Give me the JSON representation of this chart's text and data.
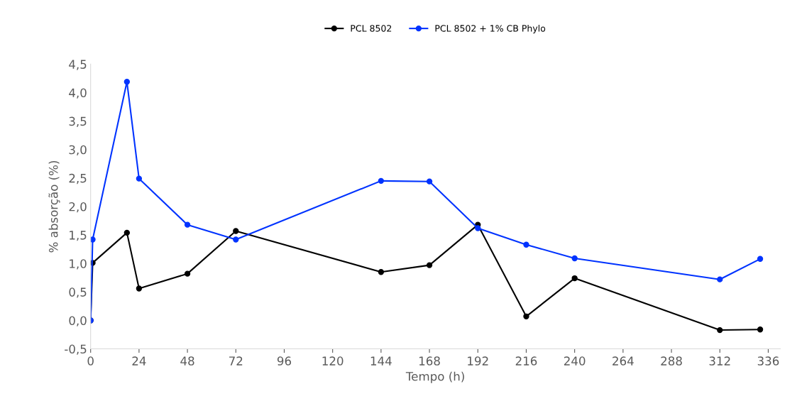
{
  "chart_data": {
    "type": "line",
    "xlabel": "Tempo (h)",
    "ylabel": "% absorção (%)",
    "x": [
      0,
      1,
      18,
      24,
      48,
      72,
      144,
      168,
      192,
      216,
      240,
      312,
      332
    ],
    "series": [
      {
        "name": "PCL 8502",
        "color": "#000000",
        "values": [
          0,
          1.01,
          1.54,
          0.56,
          0.82,
          1.57,
          0.85,
          0.97,
          1.68,
          0.07,
          0.74,
          -0.17,
          -0.16
        ]
      },
      {
        "name": "PCL 8502 + 1% CB Phylo",
        "color": "#0033ff",
        "values": [
          0,
          1.42,
          4.19,
          2.49,
          1.68,
          1.42,
          2.45,
          2.44,
          1.62,
          1.33,
          1.09,
          0.72,
          1.08
        ]
      }
    ],
    "xlim": [
      0,
      342
    ],
    "xticks": [
      0,
      24,
      48,
      72,
      96,
      120,
      144,
      168,
      192,
      216,
      240,
      264,
      288,
      312,
      336
    ],
    "ylim": [
      -0.5,
      4.5
    ],
    "yticks": [
      {
        "value": -0.5,
        "label": "-0,5"
      },
      {
        "value": 0,
        "label": "0,0"
      },
      {
        "value": 0.5,
        "label": "0,5"
      },
      {
        "value": 1,
        "label": "1,0"
      },
      {
        "value": 1.5,
        "label": "1,5"
      },
      {
        "value": 2,
        "label": "2,0"
      },
      {
        "value": 2.5,
        "label": "2,5"
      },
      {
        "value": 3,
        "label": "3,0"
      },
      {
        "value": 3.5,
        "label": "3,5"
      },
      {
        "value": 4,
        "label": "4,0"
      },
      {
        "value": 4.5,
        "label": "4,5"
      }
    ],
    "grid": false,
    "legend": "top",
    "marker": "circle",
    "line_style": "solid"
  }
}
